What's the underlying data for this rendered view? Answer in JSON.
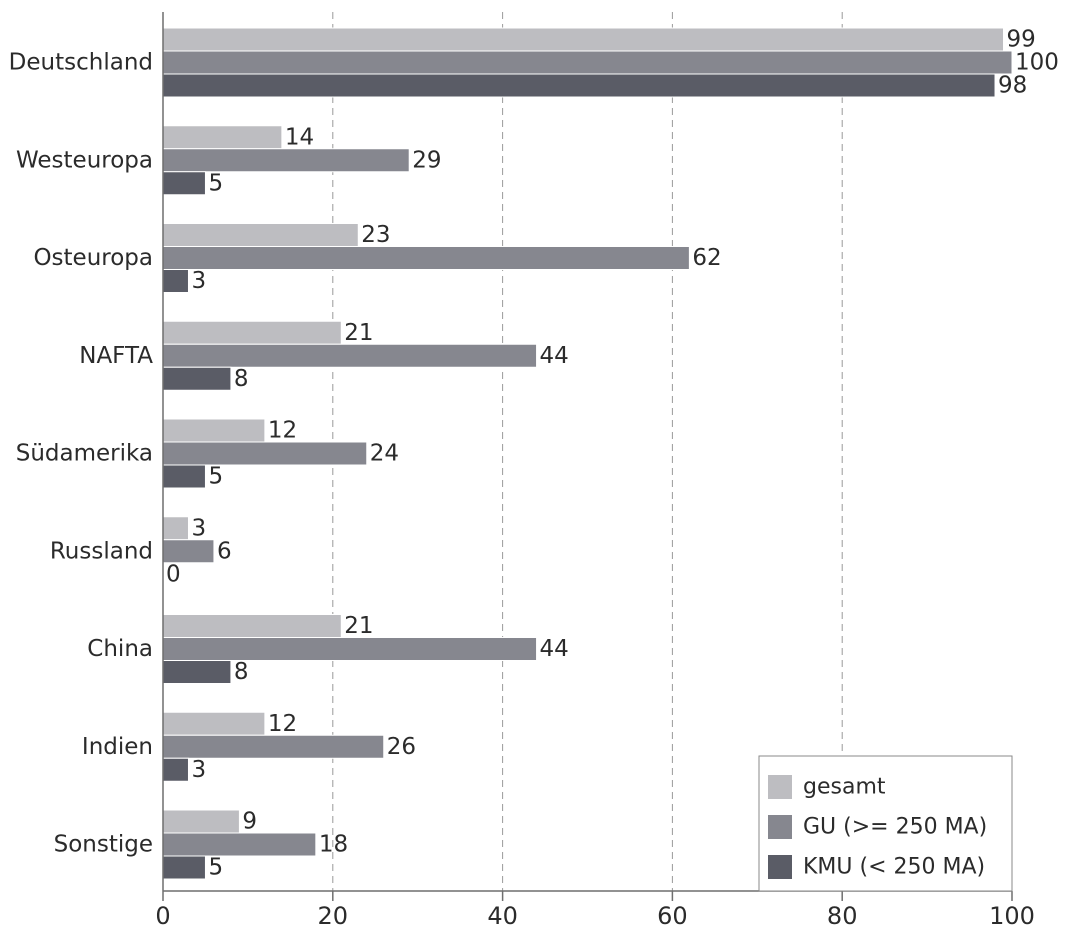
{
  "chart_data": {
    "type": "bar",
    "orientation": "horizontal",
    "categories": [
      "Deutschland",
      "Westeuropa",
      "Osteuropa",
      "NAFTA",
      "Südamerika",
      "Russland",
      "China",
      "Indien",
      "Sonstige"
    ],
    "series": [
      {
        "name": "gesamt",
        "color": "#bdbdc1",
        "values": [
          99,
          14,
          23,
          21,
          12,
          3,
          21,
          12,
          9
        ]
      },
      {
        "name": "GU (>= 250 MA)",
        "color": "#86878f",
        "values": [
          100,
          29,
          62,
          44,
          24,
          6,
          44,
          26,
          18
        ]
      },
      {
        "name": "KMU (< 250 MA)",
        "color": "#5a5c66",
        "values": [
          98,
          5,
          3,
          8,
          5,
          0,
          8,
          3,
          5
        ]
      }
    ],
    "xlim": [
      0,
      100
    ],
    "xticks": [
      0,
      20,
      40,
      60,
      80,
      100
    ],
    "grid": "vertical dashed",
    "legend_position": "bottom-right",
    "title": "",
    "xlabel": "",
    "ylabel": ""
  }
}
